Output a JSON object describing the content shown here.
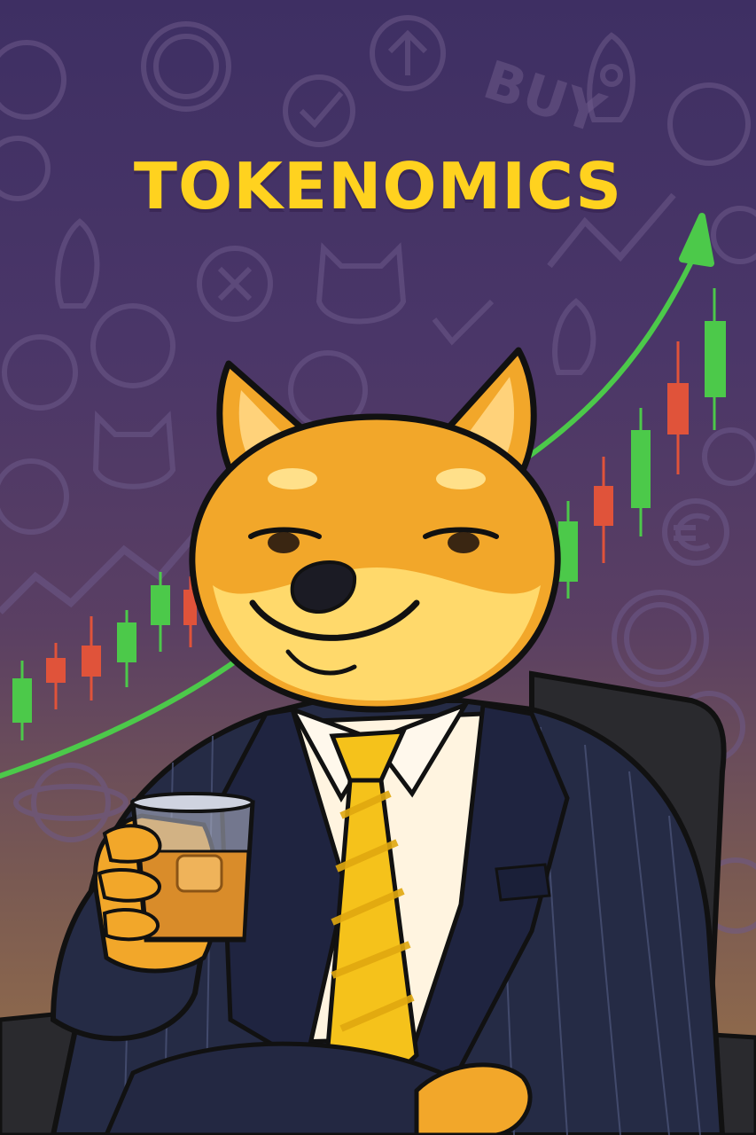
{
  "poster": {
    "title": "TOKENOMICS",
    "background_text": [
      "BUY"
    ],
    "colors": {
      "title": "#ffd21f",
      "background_top": "#3e2f63",
      "background_bottom": "#9a7248",
      "candle_up": "#4cc94a",
      "candle_down": "#e0533a",
      "trend_arrow": "#4cc94a",
      "dog_fur": "#f2a72a",
      "suit": "#252b45",
      "tie": "#f5c21b"
    },
    "icons": [
      "rocket-icon",
      "coin-icon",
      "checkmark-icon",
      "x-icon",
      "arrow-up-icon",
      "dog-face-icon",
      "euro-icon",
      "dollar-icon",
      "planet-icon"
    ]
  }
}
